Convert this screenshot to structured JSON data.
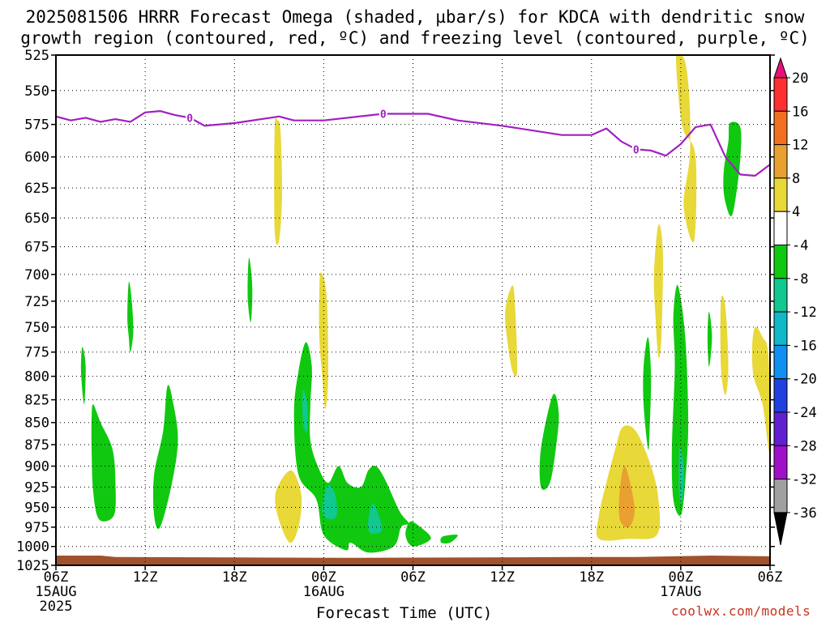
{
  "title": {
    "line1": "2025081506 HRRR Forecast Omega (shaded, µbar/s) for KDCA with dendritic snow",
    "line2": "growth region (contoured, red, ºC) and freezing level (contoured, purple, ºC)"
  },
  "xaxis": {
    "title": "Forecast Time (UTC)",
    "ticks": [
      {
        "label": "06Z",
        "sub1": "15AUG",
        "sub2": "2025"
      },
      {
        "label": "12Z",
        "sub1": "",
        "sub2": ""
      },
      {
        "label": "18Z",
        "sub1": "",
        "sub2": ""
      },
      {
        "label": "00Z",
        "sub1": "16AUG",
        "sub2": ""
      },
      {
        "label": "06Z",
        "sub1": "",
        "sub2": ""
      },
      {
        "label": "12Z",
        "sub1": "",
        "sub2": ""
      },
      {
        "label": "18Z",
        "sub1": "",
        "sub2": ""
      },
      {
        "label": "00Z",
        "sub1": "17AUG",
        "sub2": ""
      },
      {
        "label": "06Z",
        "sub1": "",
        "sub2": ""
      }
    ]
  },
  "source": "coolwx.com/models",
  "colors": {
    "freezing_level": "#a020c0",
    "terrain": "#a0522d"
  },
  "chart_data": {
    "type": "contour",
    "x_hours": [
      0,
      48
    ],
    "y_pressure_hPa": [
      525,
      1025
    ],
    "y_scale": "log",
    "ytick_labels": [
      "525",
      "550",
      "575",
      "600",
      "625",
      "650",
      "675",
      "700",
      "725",
      "750",
      "775",
      "800",
      "825",
      "850",
      "875",
      "900",
      "925",
      "950",
      "975",
      "1000",
      "1025"
    ],
    "colorbar": {
      "labels": [
        "20",
        "16",
        "12",
        "8",
        "4",
        "-4",
        "-8",
        "-12",
        "-16",
        "-20",
        "-24",
        "-28",
        "-32",
        "-36"
      ],
      "bins": [
        {
          "from": 20,
          "to": 24,
          "color": "#e8107a"
        },
        {
          "from": 16,
          "to": 20,
          "color": "#ff3030"
        },
        {
          "from": 12,
          "to": 16,
          "color": "#f07020"
        },
        {
          "from": 8,
          "to": 12,
          "color": "#e8a030"
        },
        {
          "from": 4,
          "to": 8,
          "color": "#e8d838"
        },
        {
          "from": -4,
          "to": 4,
          "color": "#ffffff"
        },
        {
          "from": -8,
          "to": -4,
          "color": "#10c810"
        },
        {
          "from": -12,
          "to": -8,
          "color": "#10c890"
        },
        {
          "from": -16,
          "to": -12,
          "color": "#10b8c8"
        },
        {
          "from": -20,
          "to": -16,
          "color": "#1090f0"
        },
        {
          "from": -24,
          "to": -20,
          "color": "#2040e0"
        },
        {
          "from": -28,
          "to": -24,
          "color": "#6020d0"
        },
        {
          "from": -32,
          "to": -28,
          "color": "#a010c8"
        },
        {
          "from": -36,
          "to": -32,
          "color": "#a0a0a0"
        },
        {
          "from": -40,
          "to": -36,
          "color": "#000000"
        }
      ]
    },
    "freezing_level": {
      "label": "0",
      "points": [
        [
          0,
          569
        ],
        [
          1,
          572
        ],
        [
          2,
          570
        ],
        [
          3,
          573
        ],
        [
          4,
          571
        ],
        [
          5,
          573
        ],
        [
          6,
          566
        ],
        [
          7,
          565
        ],
        [
          8,
          568
        ],
        [
          9,
          570
        ],
        [
          10,
          576
        ],
        [
          12,
          574
        ],
        [
          15,
          569
        ],
        [
          16,
          572
        ],
        [
          18,
          572
        ],
        [
          22,
          567
        ],
        [
          25,
          567
        ],
        [
          27,
          572
        ],
        [
          30,
          576
        ],
        [
          34,
          583
        ],
        [
          36,
          583
        ],
        [
          37,
          578
        ],
        [
          38,
          588
        ],
        [
          39,
          594
        ],
        [
          40,
          595
        ],
        [
          41,
          599
        ],
        [
          42,
          590
        ],
        [
          43,
          577
        ],
        [
          44,
          575
        ],
        [
          45,
          600
        ],
        [
          46,
          614
        ],
        [
          47,
          615
        ],
        [
          48,
          606
        ]
      ]
    },
    "terrain_surface_hPa": [
      [
        0,
        1012
      ],
      [
        3,
        1012
      ],
      [
        4,
        1014
      ],
      [
        20,
        1015
      ],
      [
        35,
        1014
      ],
      [
        39,
        1014
      ],
      [
        44,
        1012
      ],
      [
        48,
        1013
      ]
    ],
    "omega_regions": [
      {
        "v": 4,
        "pts": [
          [
            14.7,
            578
          ],
          [
            14.9,
            572
          ],
          [
            15.1,
            580
          ],
          [
            15.2,
            630
          ],
          [
            15.0,
            670
          ],
          [
            14.7,
            660
          ]
        ]
      },
      {
        "v": 4,
        "pts": [
          [
            41.7,
            525
          ],
          [
            42.3,
            530
          ],
          [
            42.6,
            560
          ],
          [
            42.6,
            600
          ],
          [
            42.2,
            640
          ],
          [
            42.9,
            670
          ],
          [
            43.0,
            600
          ],
          [
            42.2,
            580
          ],
          [
            41.9,
            560
          ]
        ]
      },
      {
        "v": -6,
        "pts": [
          [
            45.2,
            588
          ],
          [
            45.3,
            574
          ],
          [
            46.0,
            577
          ],
          [
            46.0,
            602
          ],
          [
            45.6,
            640
          ],
          [
            45.3,
            648
          ],
          [
            44.9,
            630
          ],
          [
            44.9,
            610
          ]
        ]
      },
      {
        "v": -6,
        "pts": [
          [
            13.0,
            685
          ],
          [
            13.2,
            712
          ],
          [
            13.1,
            745
          ],
          [
            12.9,
            725
          ],
          [
            12.9,
            700
          ]
        ]
      },
      {
        "v": -6,
        "pts": [
          [
            4.9,
            707
          ],
          [
            5.1,
            725
          ],
          [
            5.2,
            755
          ],
          [
            5.0,
            775
          ],
          [
            4.9,
            760
          ],
          [
            4.8,
            740
          ]
        ]
      },
      {
        "v": -6,
        "pts": [
          [
            1.8,
            770
          ],
          [
            2.0,
            790
          ],
          [
            1.9,
            830
          ],
          [
            1.7,
            800
          ],
          [
            1.7,
            780
          ]
        ]
      },
      {
        "v": -6,
        "pts": [
          [
            2.5,
            830
          ],
          [
            3.0,
            850
          ],
          [
            3.8,
            880
          ],
          [
            4.0,
            920
          ],
          [
            3.9,
            960
          ],
          [
            2.9,
            965
          ],
          [
            2.5,
            930
          ],
          [
            2.4,
            880
          ],
          [
            2.4,
            845
          ]
        ]
      },
      {
        "v": -6,
        "pts": [
          [
            7.5,
            810
          ],
          [
            7.9,
            830
          ],
          [
            8.2,
            870
          ],
          [
            7.8,
            920
          ],
          [
            7.0,
            975
          ],
          [
            6.6,
            960
          ],
          [
            6.6,
            910
          ],
          [
            7.2,
            860
          ]
        ]
      },
      {
        "v": 4,
        "pts": [
          [
            17.8,
            698
          ],
          [
            18.2,
            720
          ],
          [
            18.3,
            800
          ],
          [
            18.1,
            835
          ],
          [
            17.9,
            800
          ],
          [
            17.7,
            760
          ],
          [
            17.7,
            720
          ]
        ]
      },
      {
        "v": -6,
        "pts": [
          [
            16.8,
            765
          ],
          [
            17.2,
            790
          ],
          [
            17.1,
            830
          ],
          [
            17.1,
            870
          ],
          [
            17.6,
            900
          ],
          [
            18.3,
            920
          ],
          [
            19.0,
            900
          ],
          [
            19.6,
            920
          ],
          [
            20.5,
            925
          ],
          [
            21.0,
            905
          ],
          [
            21.5,
            900
          ],
          [
            22.1,
            915
          ],
          [
            23.1,
            955
          ],
          [
            23.7,
            970
          ],
          [
            23.2,
            975
          ],
          [
            22.7,
            1000
          ],
          [
            21.0,
            1008
          ],
          [
            19.8,
            995
          ],
          [
            19.5,
            1005
          ],
          [
            18.0,
            985
          ],
          [
            17.5,
            940
          ],
          [
            16.3,
            910
          ],
          [
            16.0,
            840
          ],
          [
            16.3,
            795
          ]
        ]
      },
      {
        "v": -10,
        "pts": [
          [
            16.6,
            815
          ],
          [
            16.9,
            830
          ],
          [
            16.9,
            860
          ],
          [
            16.6,
            850
          ]
        ]
      },
      {
        "v": -10,
        "pts": [
          [
            18.2,
            925
          ],
          [
            18.7,
            930
          ],
          [
            18.9,
            958
          ],
          [
            18.4,
            965
          ],
          [
            17.9,
            955
          ]
        ]
      },
      {
        "v": -10,
        "pts": [
          [
            21.3,
            945
          ],
          [
            21.7,
            960
          ],
          [
            21.9,
            980
          ],
          [
            21.1,
            982
          ],
          [
            21.0,
            965
          ]
        ]
      },
      {
        "v": -6,
        "pts": [
          [
            23.8,
            968
          ],
          [
            24.5,
            975
          ],
          [
            25.2,
            990
          ],
          [
            24.0,
            1000
          ],
          [
            23.5,
            985
          ]
        ]
      },
      {
        "v": -6,
        "pts": [
          [
            26.0,
            987
          ],
          [
            27.0,
            985
          ],
          [
            26.5,
            995
          ],
          [
            25.9,
            995
          ]
        ]
      },
      {
        "v": 4,
        "pts": [
          [
            15.8,
            905
          ],
          [
            16.5,
            935
          ],
          [
            16.3,
            975
          ],
          [
            15.7,
            995
          ],
          [
            14.9,
            960
          ],
          [
            14.8,
            930
          ]
        ]
      },
      {
        "v": 4,
        "pts": [
          [
            30.7,
            710
          ],
          [
            30.9,
            740
          ],
          [
            31.0,
            795
          ],
          [
            30.7,
            795
          ],
          [
            30.4,
            770
          ],
          [
            30.2,
            735
          ]
        ]
      },
      {
        "v": -6,
        "pts": [
          [
            33.4,
            820
          ],
          [
            33.8,
            840
          ],
          [
            33.6,
            880
          ],
          [
            33.2,
            920
          ],
          [
            32.6,
            925
          ],
          [
            32.6,
            880
          ]
        ]
      },
      {
        "v": 4,
        "pts": [
          [
            38.1,
            855
          ],
          [
            39.0,
            860
          ],
          [
            40.0,
            900
          ],
          [
            40.5,
            940
          ],
          [
            40.4,
            985
          ],
          [
            38.5,
            990
          ],
          [
            36.5,
            990
          ],
          [
            36.5,
            960
          ],
          [
            37.0,
            920
          ],
          [
            37.6,
            880
          ]
        ]
      },
      {
        "v": 8,
        "pts": [
          [
            38.2,
            900
          ],
          [
            38.6,
            920
          ],
          [
            38.9,
            955
          ],
          [
            38.5,
            975
          ],
          [
            37.9,
            965
          ],
          [
            37.9,
            930
          ]
        ]
      },
      {
        "v": 4,
        "pts": [
          [
            40.5,
            656
          ],
          [
            40.8,
            680
          ],
          [
            40.7,
            760
          ],
          [
            40.5,
            780
          ],
          [
            40.3,
            740
          ],
          [
            40.2,
            700
          ]
        ]
      },
      {
        "v": -6,
        "pts": [
          [
            39.8,
            760
          ],
          [
            40.0,
            800
          ],
          [
            39.9,
            860
          ],
          [
            39.8,
            880
          ],
          [
            39.5,
            830
          ],
          [
            39.5,
            790
          ]
        ]
      },
      {
        "v": -6,
        "pts": [
          [
            41.8,
            710
          ],
          [
            42.3,
            760
          ],
          [
            42.5,
            850
          ],
          [
            42.3,
            920
          ],
          [
            42.0,
            960
          ],
          [
            41.5,
            940
          ],
          [
            41.4,
            880
          ],
          [
            41.6,
            790
          ],
          [
            41.5,
            740
          ]
        ]
      },
      {
        "v": -10,
        "pts": [
          [
            41.9,
            880
          ],
          [
            42.2,
            900
          ],
          [
            42.1,
            940
          ],
          [
            41.9,
            935
          ]
        ]
      },
      {
        "v": -6,
        "pts": [
          [
            43.9,
            735
          ],
          [
            44.1,
            760
          ],
          [
            43.9,
            790
          ],
          [
            43.8,
            760
          ]
        ]
      },
      {
        "v": 4,
        "pts": [
          [
            44.7,
            725
          ],
          [
            45.0,
            730
          ],
          [
            45.2,
            790
          ],
          [
            45.0,
            820
          ],
          [
            44.7,
            790
          ]
        ]
      },
      {
        "v": 4,
        "pts": [
          [
            47.0,
            750
          ],
          [
            47.5,
            760
          ],
          [
            47.9,
            780
          ],
          [
            48.0,
            885
          ],
          [
            47.5,
            830
          ],
          [
            46.9,
            800
          ],
          [
            46.8,
            770
          ]
        ]
      }
    ]
  }
}
